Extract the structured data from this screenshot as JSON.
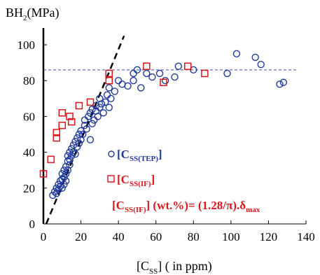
{
  "chart_data": {
    "type": "scatter",
    "title": "",
    "ylabel": "BH",
    "ylabel_sub": "2",
    "ylabel_unit": "(MPa)",
    "xlabel_main": "[C",
    "xlabel_sub": "SS",
    "xlabel_rest": "] ( in ppm)",
    "xlim": [
      0,
      140
    ],
    "ylim": [
      0,
      100
    ],
    "xticks": [
      0,
      20,
      40,
      60,
      80,
      100,
      120,
      140
    ],
    "yticks": [
      0,
      20,
      40,
      60,
      80,
      100
    ],
    "grid": false,
    "reference_lines": [
      {
        "name": "plateau",
        "style": "dashed",
        "color": "#3a4fb0",
        "y": 86,
        "x_from": 0,
        "x_to": 135
      },
      {
        "name": "linear-fit",
        "style": "dashed",
        "color": "#000000",
        "x_from": 1.5,
        "y_from": 0,
        "x_to": 43,
        "y_to": 105
      }
    ],
    "series": [
      {
        "name": "[C_SS(TEP)]",
        "marker": "circle",
        "color": "#1f3a9c",
        "points": [
          [
            5,
            16
          ],
          [
            6,
            18
          ],
          [
            7,
            17
          ],
          [
            7,
            20
          ],
          [
            8,
            19
          ],
          [
            8,
            22
          ],
          [
            9,
            21
          ],
          [
            9,
            24
          ],
          [
            10,
            20
          ],
          [
            10,
            25
          ],
          [
            10,
            28
          ],
          [
            11,
            22
          ],
          [
            11,
            26
          ],
          [
            11,
            30
          ],
          [
            12,
            24
          ],
          [
            12,
            28
          ],
          [
            12,
            32
          ],
          [
            13,
            30
          ],
          [
            13,
            35
          ],
          [
            13,
            38
          ],
          [
            14,
            33
          ],
          [
            14,
            36
          ],
          [
            14,
            40
          ],
          [
            15,
            38
          ],
          [
            15,
            42
          ],
          [
            16,
            40
          ],
          [
            16,
            44
          ],
          [
            17,
            39
          ],
          [
            17,
            46
          ],
          [
            18,
            43
          ],
          [
            18,
            48
          ],
          [
            19,
            45
          ],
          [
            19,
            50
          ],
          [
            20,
            47
          ],
          [
            20,
            52
          ],
          [
            21,
            50
          ],
          [
            22,
            55
          ],
          [
            22,
            58
          ],
          [
            23,
            53
          ],
          [
            24,
            60
          ],
          [
            25,
            62
          ],
          [
            25,
            47
          ],
          [
            26,
            56
          ],
          [
            26,
            64
          ],
          [
            27,
            58
          ],
          [
            28,
            63
          ],
          [
            28,
            66
          ],
          [
            29,
            60
          ],
          [
            30,
            65
          ],
          [
            30,
            70
          ],
          [
            31,
            67
          ],
          [
            32,
            62
          ],
          [
            33,
            68
          ],
          [
            34,
            72
          ],
          [
            35,
            65
          ],
          [
            35,
            76
          ],
          [
            36,
            70
          ],
          [
            38,
            74
          ],
          [
            40,
            80
          ],
          [
            42,
            78
          ],
          [
            45,
            77
          ],
          [
            48,
            80
          ],
          [
            48,
            84
          ],
          [
            50,
            86
          ],
          [
            52,
            76
          ],
          [
            55,
            84
          ],
          [
            58,
            82
          ],
          [
            62,
            84
          ],
          [
            65,
            80
          ],
          [
            70,
            82
          ],
          [
            72,
            88
          ],
          [
            80,
            86
          ],
          [
            98,
            84
          ],
          [
            103,
            95
          ],
          [
            113,
            93
          ],
          [
            116,
            89
          ],
          [
            126,
            78
          ],
          [
            128,
            79
          ]
        ]
      },
      {
        "name": "[C_SS(IF)]",
        "marker": "square",
        "color": "#e0151b",
        "points": [
          [
            0,
            28
          ],
          [
            4,
            36
          ],
          [
            7,
            48
          ],
          [
            7,
            51
          ],
          [
            10,
            55
          ],
          [
            10,
            62
          ],
          [
            14,
            60
          ],
          [
            15,
            57
          ],
          [
            19,
            66
          ],
          [
            25,
            68
          ],
          [
            35,
            80
          ],
          [
            35,
            84
          ],
          [
            55,
            88
          ],
          [
            64,
            79
          ],
          [
            77,
            88
          ],
          [
            86,
            84
          ]
        ]
      }
    ],
    "legend": {
      "placement": "bottom-right",
      "entries": [
        {
          "marker": "circle",
          "color": "#1f3a9c",
          "main": "[C",
          "sub": "SS(TEP)",
          "tail": "]"
        },
        {
          "marker": "square",
          "color": "#e0151b",
          "main": "[C",
          "sub": "SS(IF)",
          "tail": "]"
        }
      ]
    },
    "annotation": {
      "color": "#e0151b",
      "main": "[C",
      "sub": "SS(IF)",
      "tail": "] (wt.%)= (1.28/π).δ",
      "tail_sub": "max"
    }
  }
}
